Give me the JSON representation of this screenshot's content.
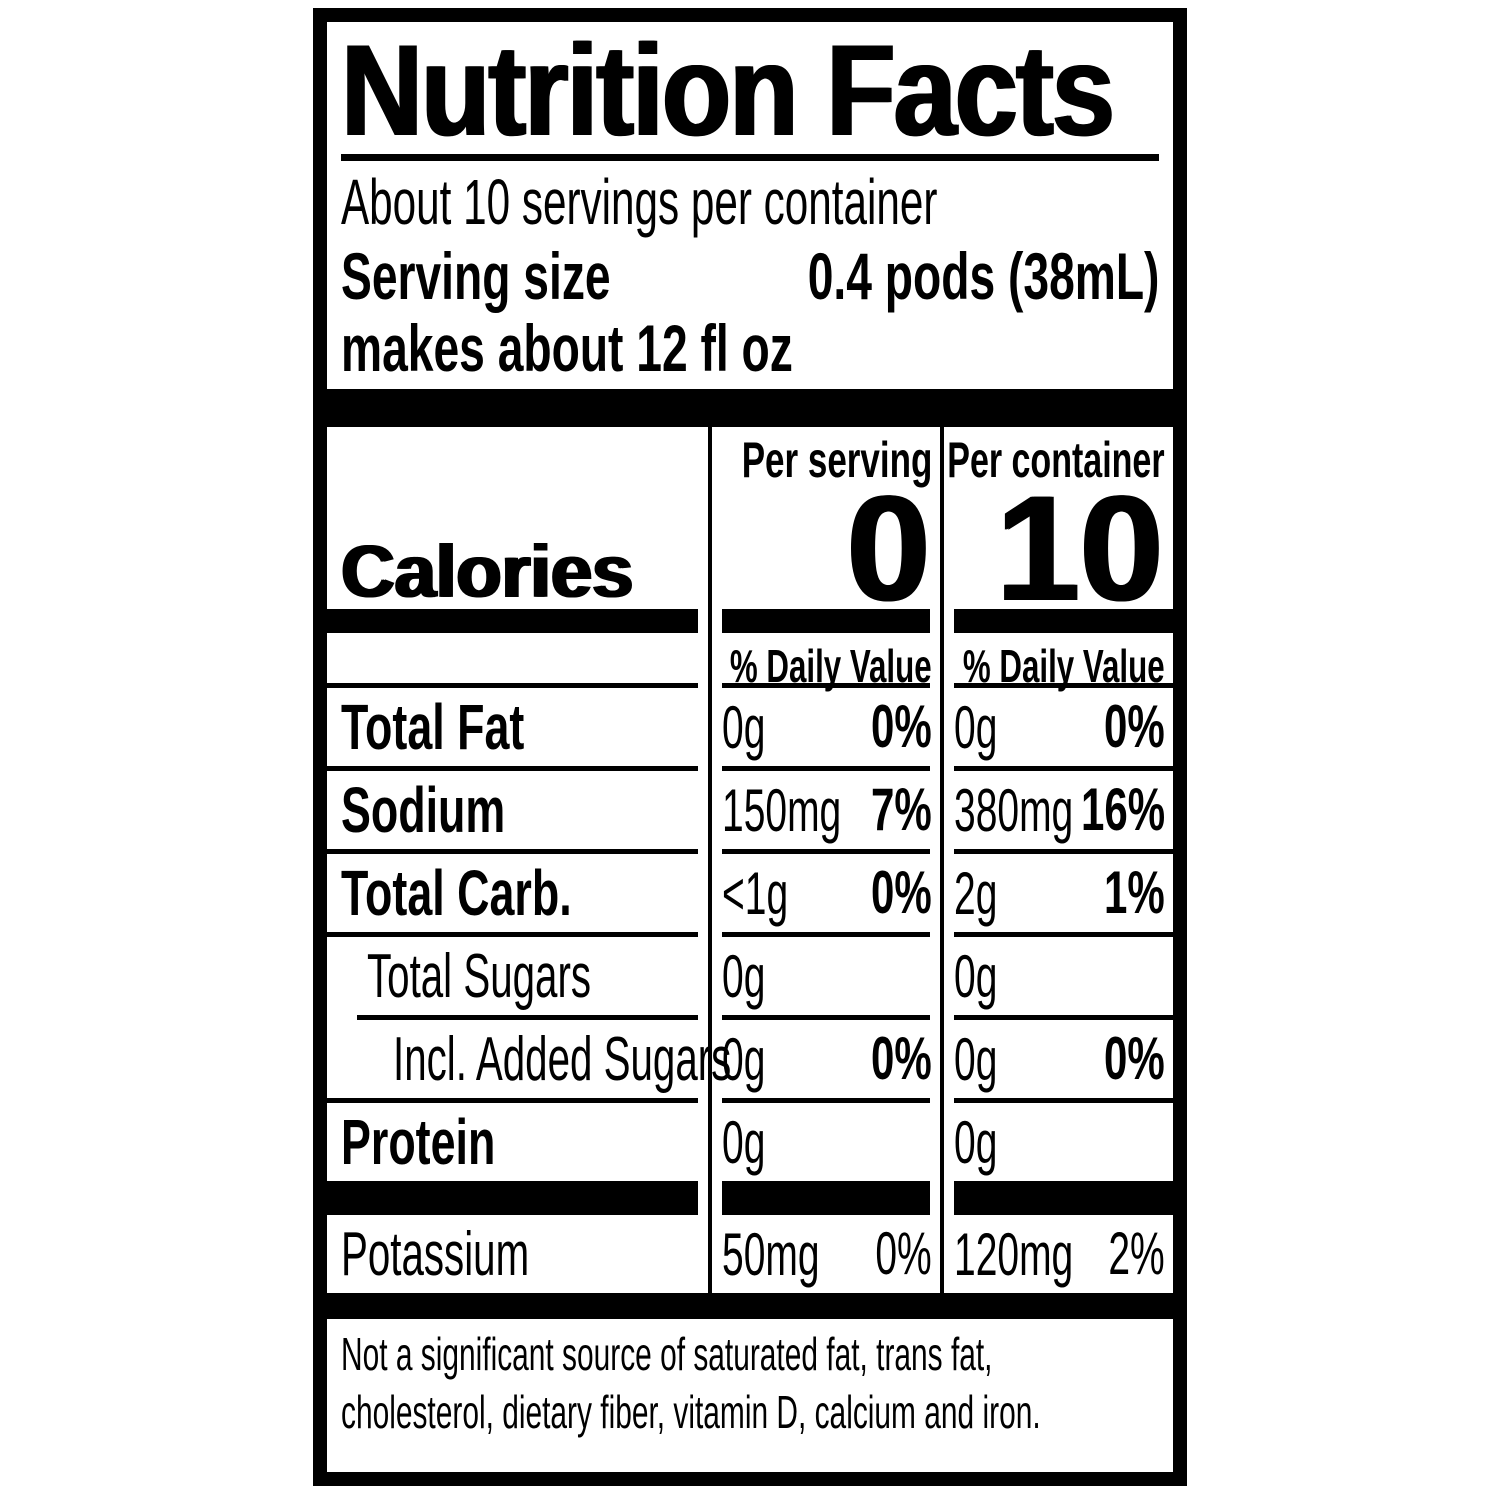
{
  "title": "Nutrition Facts",
  "servings_per_container": "About 10 servings per container",
  "serving_size": {
    "label": "Serving size",
    "value": "0.4 pods (38mL)",
    "note": "makes about 12 fl oz"
  },
  "column_headers": {
    "per_serving": "Per serving",
    "per_container": "Per container"
  },
  "calories": {
    "label": "Calories",
    "per_serving": "0",
    "per_container": "10"
  },
  "daily_value_header": "% Daily Value",
  "rows": [
    {
      "name": "Total Fat",
      "ps_amount": "0g",
      "ps_dv": "0%",
      "pc_amount": "0g",
      "pc_dv": "0%"
    },
    {
      "name": "Sodium",
      "ps_amount": "150mg",
      "ps_dv": "7%",
      "pc_amount": "380mg",
      "pc_dv": "16%"
    },
    {
      "name": "Total Carb.",
      "ps_amount": "<1g",
      "ps_dv": "0%",
      "pc_amount": "2g",
      "pc_dv": "1%"
    },
    {
      "name": "Total Sugars",
      "ps_amount": "0g",
      "ps_dv": "",
      "pc_amount": "0g",
      "pc_dv": ""
    },
    {
      "name": "Incl. Added Sugars",
      "ps_amount": "0g",
      "ps_dv": "0%",
      "pc_amount": "0g",
      "pc_dv": "0%"
    },
    {
      "name": "Protein",
      "ps_amount": "0g",
      "ps_dv": "",
      "pc_amount": "0g",
      "pc_dv": ""
    }
  ],
  "potassium": {
    "name": "Potassium",
    "ps_amount": "50mg",
    "ps_dv": "0%",
    "pc_amount": "120mg",
    "pc_dv": "2%"
  },
  "footnote_lines": [
    "Not a significant source of saturated fat, trans fat,",
    "cholesterol, dietary fiber, vitamin D, calcium and iron."
  ],
  "colors": {
    "ink": "#000000",
    "paper": "#ffffff"
  }
}
